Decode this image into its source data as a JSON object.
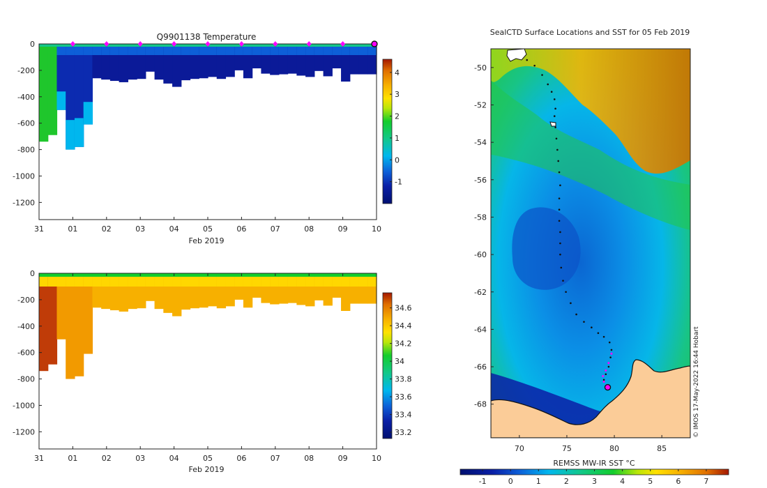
{
  "colors": {
    "land": "#fbcc98",
    "magenta": "#ff00ff",
    "axis": "#222222"
  },
  "chart_data": [
    {
      "type": "heatmap",
      "title": "Q9901138  Temperature",
      "xlabel": "Feb 2019",
      "ylabel": "",
      "x_ticks": [
        "31",
        "01",
        "02",
        "03",
        "04",
        "05",
        "06",
        "07",
        "08",
        "09",
        "10"
      ],
      "x_range_days": [
        0,
        10
      ],
      "y_ticks": [
        "0",
        "-200",
        "-400",
        "-600",
        "-800",
        "-1000",
        "-1200"
      ],
      "ylim": [
        -1330,
        0
      ],
      "colorbar": {
        "ticks": [
          "-1",
          "0",
          "1",
          "2",
          "3",
          "4"
        ],
        "range": [
          -2,
          4.6
        ]
      },
      "profile_max_depth": [
        740,
        690,
        500,
        800,
        780,
        610,
        260,
        270,
        280,
        290,
        270,
        265,
        210,
        270,
        300,
        325,
        275,
        265,
        260,
        250,
        265,
        250,
        200,
        260,
        185,
        225,
        235,
        230,
        225,
        240,
        250,
        205,
        245,
        185,
        285,
        230,
        230,
        230
      ],
      "markers_days": [
        1,
        2,
        3,
        4,
        5,
        6,
        7,
        8,
        9
      ],
      "last_profile_marker_day": 10
    },
    {
      "type": "heatmap",
      "title": "",
      "xlabel": "Feb 2019",
      "ylabel": "",
      "x_ticks": [
        "31",
        "01",
        "02",
        "03",
        "04",
        "05",
        "06",
        "07",
        "08",
        "09",
        "10"
      ],
      "x_range_days": [
        0,
        10
      ],
      "y_ticks": [
        "0",
        "-200",
        "-400",
        "-600",
        "-800",
        "-1000",
        "-1200"
      ],
      "ylim": [
        -1330,
        0
      ],
      "colorbar": {
        "ticks": [
          "33.2",
          "33.4",
          "33.6",
          "33.8",
          "34",
          "34.2",
          "34.4",
          "34.6"
        ],
        "range": [
          33.13,
          34.77
        ]
      },
      "profile_max_depth": [
        740,
        690,
        500,
        800,
        780,
        610,
        260,
        270,
        280,
        290,
        270,
        265,
        210,
        270,
        300,
        325,
        275,
        265,
        260,
        250,
        265,
        250,
        200,
        260,
        185,
        225,
        235,
        230,
        225,
        240,
        250,
        205,
        245,
        185,
        285,
        230,
        230,
        230
      ]
    },
    {
      "type": "map",
      "title": "SealCTD Surface Locations and SST for 05 Feb 2019",
      "x_ticks": [
        "70",
        "75",
        "80",
        "85"
      ],
      "xlim": [
        67,
        88
      ],
      "y_ticks": [
        "-50",
        "-52",
        "-54",
        "-56",
        "-58",
        "-60",
        "-62",
        "-64",
        "-66",
        "-68"
      ],
      "ylim": [
        -69.8,
        -49
      ],
      "colorbar": {
        "label": "REMSS MW-IR SST °C",
        "ticks": [
          "-1",
          "0",
          "1",
          "2",
          "3",
          "4",
          "5",
          "6",
          "7"
        ],
        "range": [
          -1.8,
          7.8
        ]
      },
      "track": [
        [
          70.8,
          -49.6
        ],
        [
          71.6,
          -49.9
        ],
        [
          72.4,
          -50.4
        ],
        [
          73.0,
          -50.9
        ],
        [
          73.4,
          -51.3
        ],
        [
          73.7,
          -51.7
        ],
        [
          73.8,
          -52.2
        ],
        [
          73.7,
          -52.6
        ],
        [
          73.8,
          -53.2
        ],
        [
          73.9,
          -53.8
        ],
        [
          74.0,
          -54.4
        ],
        [
          74.1,
          -55.0
        ],
        [
          74.2,
          -55.6
        ],
        [
          74.3,
          -56.3
        ],
        [
          74.2,
          -57.0
        ],
        [
          74.2,
          -57.6
        ],
        [
          74.2,
          -58.2
        ],
        [
          74.3,
          -58.8
        ],
        [
          74.3,
          -59.4
        ],
        [
          74.3,
          -60.0
        ],
        [
          74.4,
          -60.7
        ],
        [
          74.6,
          -61.4
        ],
        [
          74.9,
          -62.0
        ],
        [
          75.4,
          -62.6
        ],
        [
          76.0,
          -63.2
        ],
        [
          76.8,
          -63.6
        ],
        [
          77.6,
          -63.9
        ],
        [
          78.3,
          -64.2
        ],
        [
          78.9,
          -64.4
        ],
        [
          79.5,
          -64.7
        ],
        [
          79.7,
          -65.1
        ],
        [
          79.6,
          -65.5
        ],
        [
          79.4,
          -66.0
        ],
        [
          79.1,
          -66.4
        ],
        [
          78.9,
          -66.7
        ]
      ],
      "magenta_track": [
        [
          79.7,
          -65.3
        ],
        [
          79.4,
          -65.8
        ],
        [
          79.1,
          -66.2
        ],
        [
          78.8,
          -66.5
        ],
        [
          78.9,
          -66.8
        ]
      ],
      "final_position": [
        79.3,
        -67.1
      ],
      "vertical_credit": "© IMOS 17-May-2022 16:44 Hobart"
    }
  ]
}
